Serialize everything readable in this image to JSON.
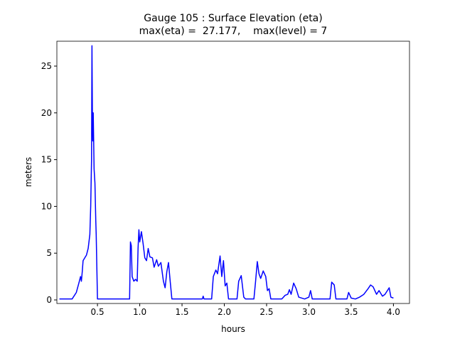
{
  "chart_data": {
    "type": "line",
    "title": "Gauge 105 : Surface Elevation (eta)",
    "subtitle": "max(eta) =  27.177,    max(level) = 7",
    "x_label": "hours",
    "y_label": "meters",
    "xlim": [
      0.02,
      4.19
    ],
    "ylim": [
      -0.38,
      27.66
    ],
    "xticks": [
      0.5,
      {
        "value": 1,
        "label": "1.0"
      },
      1.5,
      {
        "value": 2,
        "label": "2.0"
      },
      2.5,
      {
        "value": 3,
        "label": "3.0"
      },
      3.5,
      {
        "value": 4,
        "label": "4.0"
      }
    ],
    "yticks": [
      0,
      5,
      10,
      15,
      20,
      25
    ],
    "grid": false,
    "series": [
      {
        "color": "#0000ff",
        "x": [
          0.05,
          0.2,
          0.25,
          0.28,
          0.3,
          0.31,
          0.32,
          0.33,
          0.35,
          0.37,
          0.39,
          0.41,
          0.42,
          0.43,
          0.435,
          0.44,
          0.445,
          0.45,
          0.46,
          0.47,
          0.48,
          0.485,
          0.5,
          0.88,
          0.89,
          0.9,
          0.91,
          0.93,
          0.95,
          0.97,
          0.98,
          0.99,
          1.0,
          1.02,
          1.04,
          1.06,
          1.08,
          1.1,
          1.12,
          1.15,
          1.17,
          1.2,
          1.22,
          1.25,
          1.28,
          1.3,
          1.32,
          1.34,
          1.36,
          1.38,
          1.74,
          1.75,
          1.76,
          1.85,
          1.87,
          1.9,
          1.92,
          1.95,
          1.97,
          1.99,
          2.01,
          2.03,
          2.05,
          2.15,
          2.17,
          2.2,
          2.23,
          2.25,
          2.35,
          2.37,
          2.39,
          2.41,
          2.43,
          2.46,
          2.49,
          2.51,
          2.53,
          2.55,
          2.68,
          2.72,
          2.75,
          2.77,
          2.79,
          2.82,
          2.85,
          2.88,
          2.95,
          3.0,
          3.02,
          3.04,
          3.25,
          3.27,
          3.3,
          3.32,
          3.45,
          3.47,
          3.5,
          3.55,
          3.6,
          3.65,
          3.7,
          3.73,
          3.76,
          3.8,
          3.83,
          3.87,
          3.9,
          3.95,
          3.97,
          4.0
        ],
        "values": [
          0.1,
          0.1,
          0.8,
          1.8,
          2.5,
          2.0,
          3.0,
          4.2,
          4.5,
          4.8,
          5.5,
          7.0,
          10,
          15,
          27.177,
          20,
          17,
          20,
          14,
          12.5,
          8.5,
          7,
          0.1,
          0.1,
          6.2,
          5.8,
          2.5,
          2.0,
          2.2,
          2.0,
          5.5,
          7.5,
          6.2,
          7.3,
          6.0,
          4.5,
          4.2,
          5.5,
          4.6,
          4.5,
          3.5,
          4.3,
          3.6,
          4.0,
          2.0,
          1.3,
          3.0,
          4.0,
          2.0,
          0.1,
          0.1,
          0.4,
          0.1,
          0.1,
          2.5,
          3.2,
          2.8,
          4.7,
          2.5,
          4.2,
          1.5,
          1.8,
          0.1,
          0.1,
          2.0,
          2.6,
          0.3,
          0.1,
          0.1,
          2.0,
          4.1,
          2.8,
          2.3,
          3.1,
          2.5,
          1.0,
          1.2,
          0.1,
          0.1,
          0.5,
          0.6,
          1.1,
          0.6,
          1.8,
          1.2,
          0.3,
          0.1,
          0.3,
          1.0,
          0.1,
          0.1,
          1.9,
          1.6,
          0.1,
          0.1,
          0.8,
          0.2,
          0.1,
          0.3,
          0.6,
          1.2,
          1.6,
          1.4,
          0.6,
          1.0,
          0.4,
          0.6,
          1.3,
          0.3,
          0.2
        ]
      }
    ]
  }
}
